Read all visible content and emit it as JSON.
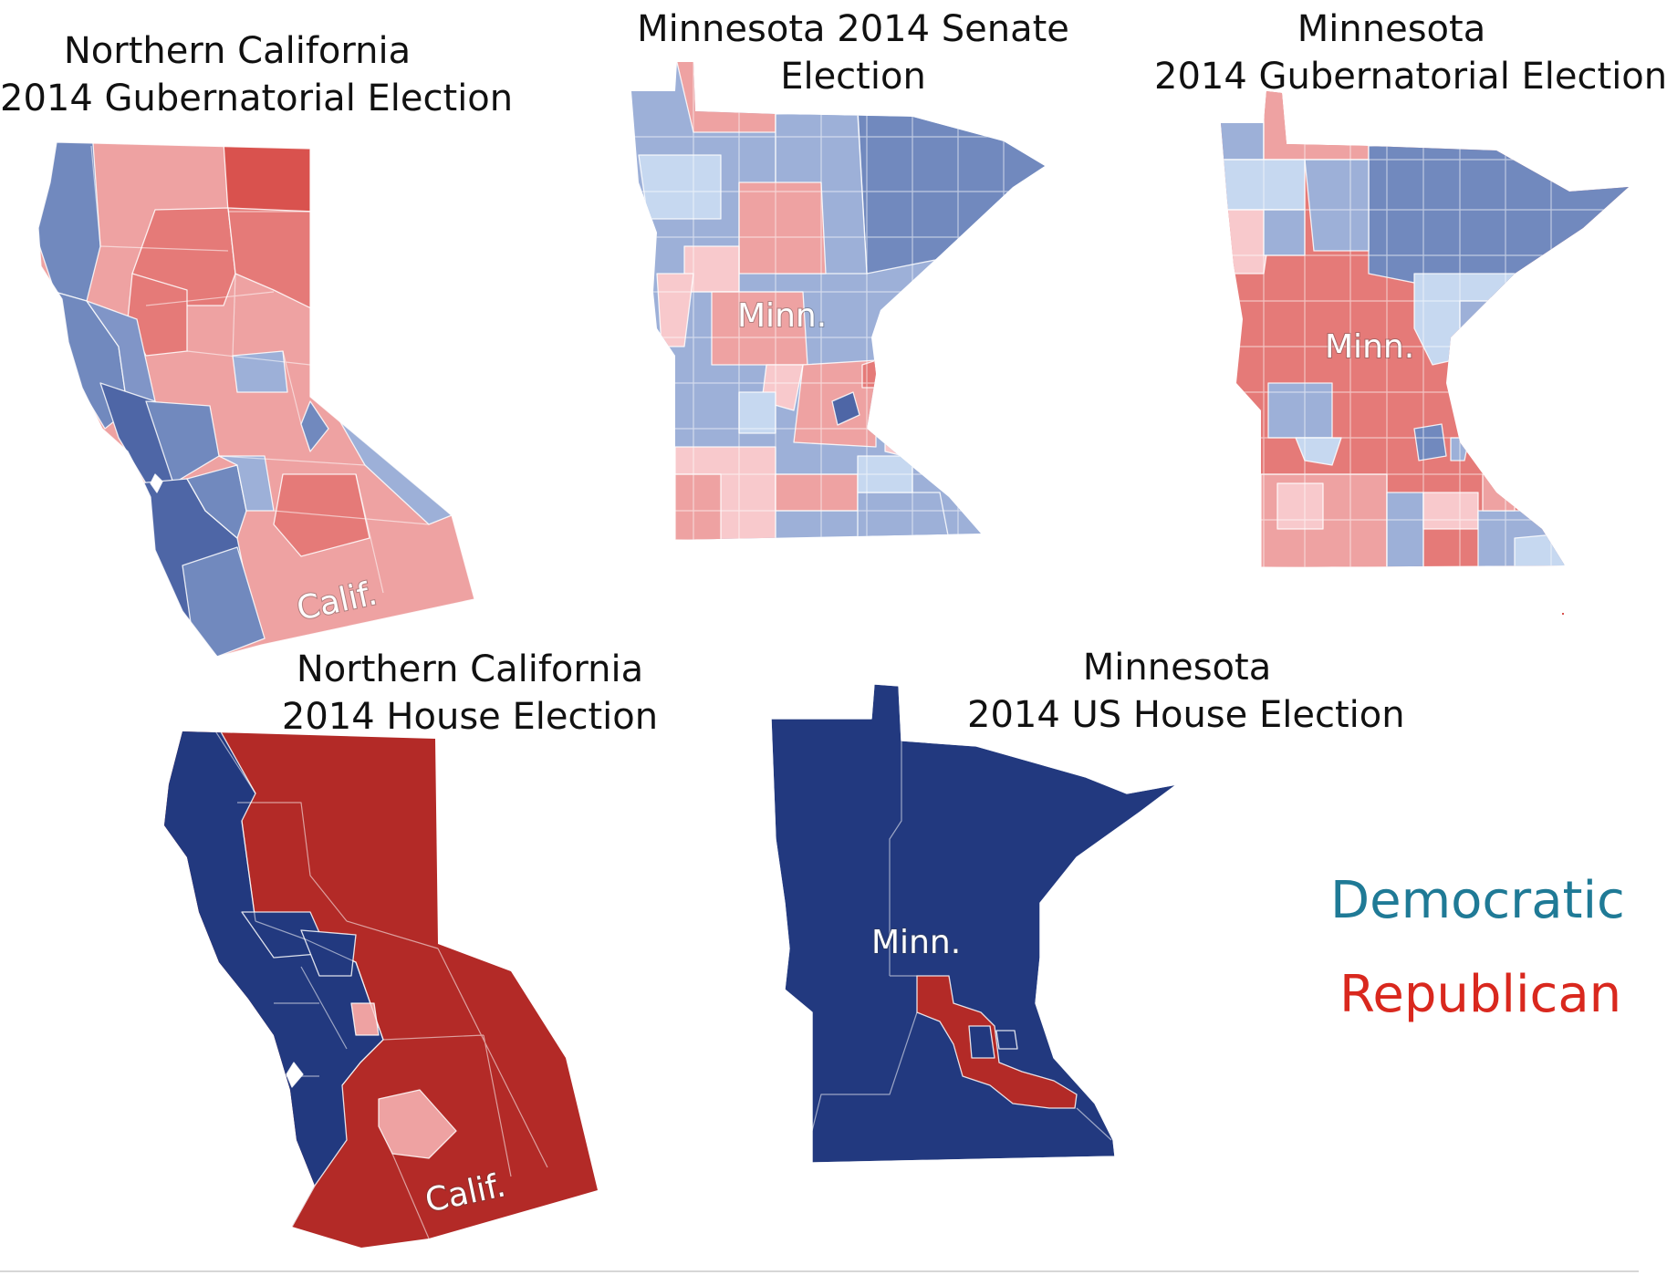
{
  "panels": {
    "ca_gov": {
      "title_1": "Northern California",
      "title_2": "2014 Gubernatorial Election",
      "map_label": "Calif."
    },
    "mn_senate": {
      "title_1": "Minnesota 2014 Senate",
      "title_2": "Election",
      "map_label": "Minn."
    },
    "mn_gov": {
      "title_1": "Minnesota",
      "title_2": "2014 Gubernatorial Election",
      "map_label": "Minn."
    },
    "ca_house": {
      "title_1": "Northern California",
      "title_2": "2014 House Election",
      "map_label": "Calif."
    },
    "mn_house": {
      "title_1": "Minnesota",
      "title_2": "2014 US House Election",
      "map_label": "Minn."
    }
  },
  "legend": {
    "democratic": {
      "label": "Democratic",
      "color": "#1f7a96"
    },
    "republican": {
      "label": "Republican",
      "color": "#d9281e"
    }
  },
  "colors": {
    "dem_dark": "#22397f",
    "dem_mid": "#4e66a6",
    "dem": "#7189be",
    "dem_light": "#9db0d8",
    "dem_pale": "#c6d8f0",
    "rep_dark": "#b32a27",
    "rep": "#d95f5f",
    "rep_mid": "#e57a78",
    "rep_light": "#eea2a2",
    "rep_pale": "#f8c9cc"
  }
}
